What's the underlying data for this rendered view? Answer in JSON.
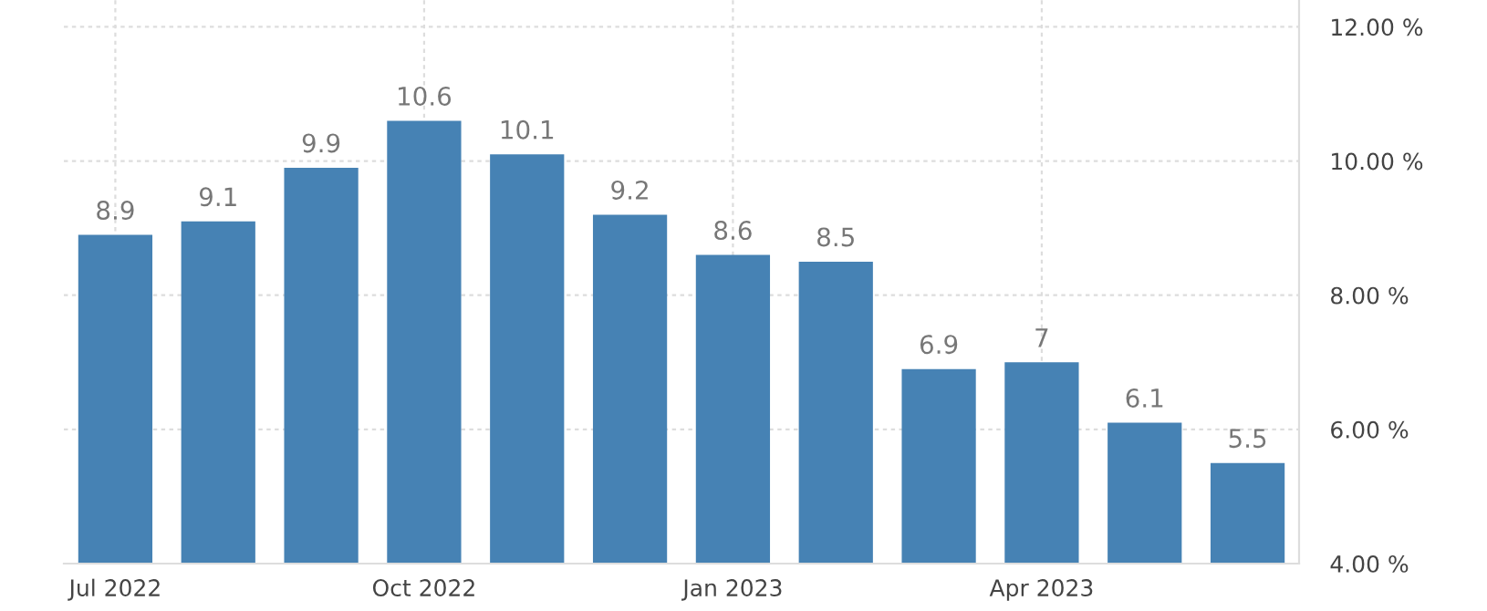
{
  "chart_data": {
    "type": "bar",
    "categories": [
      "Jul 2022",
      null,
      null,
      "Oct 2022",
      null,
      null,
      "Jan 2023",
      null,
      null,
      "Apr 2023",
      null,
      null
    ],
    "values": [
      8.9,
      9.1,
      9.9,
      10.6,
      10.1,
      9.2,
      8.6,
      8.5,
      6.9,
      7,
      6.1,
      5.5
    ],
    "color": "#4682b4",
    "ylim": [
      4,
      12.4
    ],
    "yticks": [
      {
        "value": 4,
        "label": "4.00 %"
      },
      {
        "value": 6,
        "label": "6.00 %"
      },
      {
        "value": 8,
        "label": "8.00 %"
      },
      {
        "value": 10,
        "label": "10.00 %"
      },
      {
        "value": 12,
        "label": "12.00 %"
      }
    ],
    "grid": true,
    "data_labels": true
  }
}
